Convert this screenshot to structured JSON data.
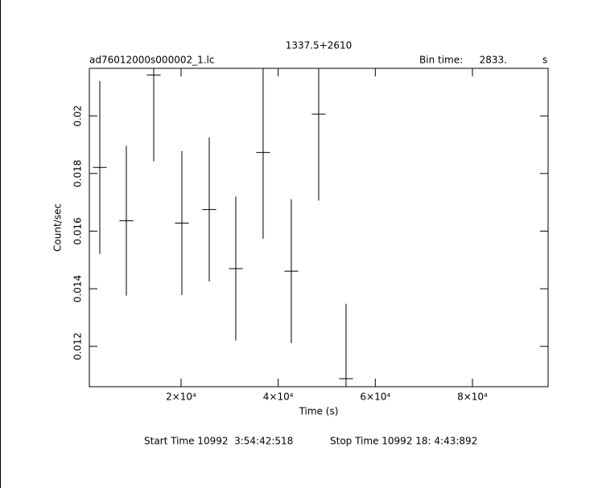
{
  "chart_data": {
    "type": "errorbar",
    "title": "1337.5+2610",
    "file_name": "ad76012000s000002_1.lc",
    "bin_time_label": "Bin time:",
    "bin_time": {
      "value": 2833,
      "label": "2833."
    },
    "bin_time_unit": "s",
    "x_label": "Time (s)",
    "y_label": "Count/sec",
    "footer_start": "Start Time 10992  3:54:42:518",
    "footer_stop": "Stop Time 10992 18: 4:43:892",
    "x": [
      3264,
      8733,
      14366,
      20166,
      25800,
      31268,
      36900,
      42700,
      48335,
      53968
    ],
    "series": [
      {
        "color": "#000000",
        "values": [
          0.01821,
          0.01636,
          0.02142,
          0.01628,
          0.01675,
          0.0147,
          0.01873,
          0.01461,
          0.02006,
          0.01088
        ],
        "yerr": [
          0.003,
          0.0026,
          0.003,
          0.0025,
          0.0025,
          0.0025,
          0.003,
          0.0025,
          0.003,
          0.0026
        ]
      }
    ],
    "xlim": [
      1110,
      95580
    ],
    "ylim": [
      0.0106,
      0.02165
    ],
    "xticks": [
      {
        "value": 20000,
        "label": "2×10⁴"
      },
      {
        "value": 40000,
        "label": "4×10⁴"
      },
      {
        "value": 60000,
        "label": "6×10⁴"
      },
      {
        "value": 80000,
        "label": "8×10⁴"
      }
    ],
    "yticks": [
      0.012,
      0.014,
      0.016,
      0.018,
      0.02
    ]
  }
}
